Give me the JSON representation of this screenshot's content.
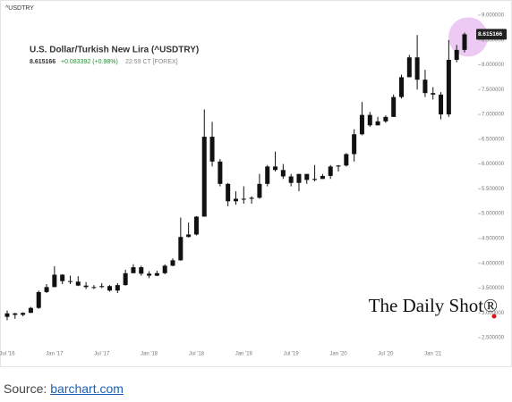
{
  "chart_data": {
    "type": "candlestick",
    "symbol": "^USDTRY",
    "title": "U.S. Dollar/Turkish New Lira (^USDTRY)",
    "change": "+0.083392 (+0.98%)",
    "timestamp": "22:59 CT [FOREX]",
    "color": "#111111",
    "change_color": "#2e8b3a",
    "highlight_color": "#e6b3f0",
    "grid": false,
    "categories": [
      "Jul '16",
      null,
      null,
      null,
      null,
      null,
      "Jan '17",
      null,
      null,
      null,
      null,
      null,
      "Jul '17",
      null,
      null,
      null,
      null,
      null,
      "Jan '18",
      null,
      null,
      null,
      null,
      null,
      "Jul '18",
      null,
      null,
      null,
      null,
      null,
      "Jan '19",
      null,
      null,
      null,
      null,
      null,
      "Jul '19",
      null,
      null,
      null,
      null,
      null,
      "Jan '20",
      null,
      null,
      null,
      null,
      null,
      "Jul '20",
      null,
      null,
      null,
      null,
      null,
      "Jan '21",
      null,
      null,
      null,
      null
    ],
    "open": [
      2.92,
      2.99,
      2.96,
      3.0,
      3.1,
      3.42,
      3.52,
      3.77,
      3.64,
      3.63,
      3.55,
      3.52,
      3.52,
      3.54,
      3.45,
      3.56,
      3.8,
      3.92,
      3.79,
      3.75,
      3.8,
      3.95,
      4.06,
      4.53,
      4.58,
      4.94,
      6.55,
      6.05,
      5.6,
      5.25,
      5.3,
      5.3,
      5.32,
      5.6,
      5.95,
      5.88,
      5.75,
      5.62,
      5.8,
      5.68,
      5.7,
      5.76,
      5.95,
      5.97,
      6.2,
      6.6,
      6.99,
      6.78,
      6.86,
      6.95,
      7.35,
      7.75,
      8.15,
      7.7,
      7.43,
      7.4,
      7.0,
      8.1,
      8.3
    ],
    "high": [
      3.05,
      3.0,
      3.01,
      3.12,
      3.45,
      3.58,
      3.94,
      3.78,
      3.75,
      3.74,
      3.62,
      3.56,
      3.6,
      3.56,
      3.6,
      3.87,
      3.98,
      3.95,
      3.84,
      3.85,
      3.98,
      4.1,
      4.92,
      4.82,
      4.95,
      7.1,
      6.85,
      6.1,
      5.62,
      5.45,
      5.55,
      5.35,
      5.8,
      5.98,
      6.25,
      6.0,
      5.8,
      5.8,
      5.8,
      5.98,
      5.8,
      5.98,
      5.98,
      6.22,
      6.7,
      7.25,
      7.05,
      6.95,
      6.98,
      7.4,
      7.8,
      8.2,
      8.6,
      7.9,
      7.55,
      7.45,
      8.5,
      8.4,
      8.65
    ],
    "low": [
      2.85,
      2.88,
      2.93,
      3.0,
      3.08,
      3.4,
      3.52,
      3.58,
      3.58,
      3.54,
      3.48,
      3.48,
      3.5,
      3.43,
      3.4,
      3.55,
      3.8,
      3.75,
      3.7,
      3.74,
      3.78,
      3.94,
      4.05,
      4.52,
      4.56,
      4.94,
      5.95,
      5.55,
      5.15,
      5.18,
      5.2,
      5.2,
      5.3,
      5.55,
      5.85,
      5.7,
      5.55,
      5.45,
      5.6,
      5.65,
      5.7,
      5.7,
      5.85,
      5.95,
      6.05,
      6.58,
      6.75,
      6.78,
      6.83,
      6.95,
      7.32,
      7.75,
      7.5,
      7.35,
      7.3,
      6.9,
      6.95,
      8.05,
      8.25
    ],
    "close": [
      2.99,
      2.96,
      3.0,
      3.1,
      3.42,
      3.52,
      3.77,
      3.64,
      3.63,
      3.55,
      3.52,
      3.52,
      3.54,
      3.45,
      3.56,
      3.8,
      3.92,
      3.79,
      3.75,
      3.8,
      3.95,
      4.06,
      4.53,
      4.58,
      4.94,
      6.55,
      6.05,
      5.6,
      5.25,
      5.3,
      5.3,
      5.32,
      5.6,
      5.95,
      5.88,
      5.75,
      5.62,
      5.8,
      5.68,
      5.7,
      5.76,
      5.95,
      5.97,
      6.2,
      6.6,
      6.99,
      6.78,
      6.86,
      6.95,
      7.35,
      7.75,
      8.15,
      7.7,
      7.43,
      7.4,
      7.0,
      8.1,
      8.3,
      8.615166
    ],
    "ylim": [
      2.5,
      9
    ],
    "yticks": [
      {
        "value": 2.5,
        "label": "2.500000"
      },
      {
        "value": 3,
        "label": "3.000000"
      },
      {
        "value": 3.5,
        "label": "3.500000"
      },
      {
        "value": 4,
        "label": "4.000000"
      },
      {
        "value": 4.5,
        "label": "4.500000"
      },
      {
        "value": 5,
        "label": "5.000000"
      },
      {
        "value": 5.5,
        "label": "5.500000"
      },
      {
        "value": 6,
        "label": "6.000000"
      },
      {
        "value": 6.5,
        "label": "6.500000"
      },
      {
        "value": 7,
        "label": "7.000000"
      },
      {
        "value": 7.5,
        "label": "7.500000"
      },
      {
        "value": 8,
        "label": "8.000000"
      },
      {
        "value": 8.5,
        "label": "8.500000"
      },
      {
        "value": 9,
        "label": "9.000000"
      }
    ]
  },
  "watermark": "The Daily Shot®",
  "source": {
    "label": "Source:",
    "link": "barchart.com"
  }
}
